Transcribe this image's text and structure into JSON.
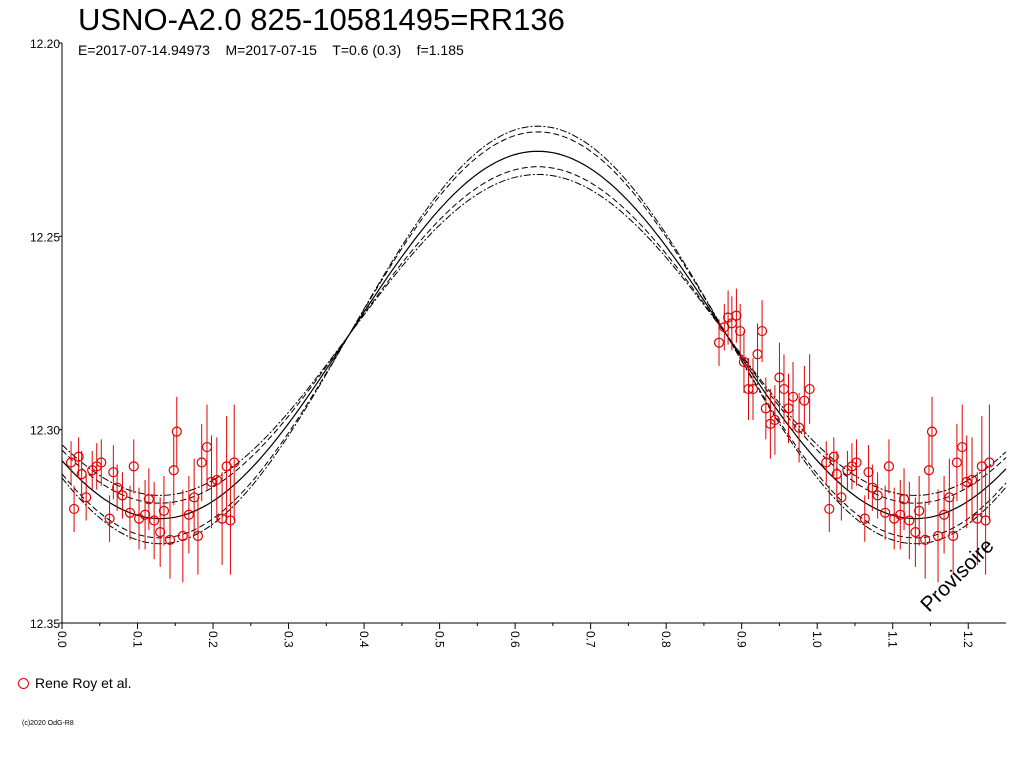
{
  "title": "USNO-A2.0 825-10581495=RR136",
  "subtitle": "E=2017-07-14.94973    M=2017-07-15    T=0.6 (0.3)    f=1.185",
  "legend_label": "Rene Roy et al.",
  "watermark": "Provisoire",
  "copyright": "(c)2020 OdG-R8",
  "colors": {
    "data": "#e00000",
    "curve": "#000000"
  },
  "chart_data": {
    "type": "scatter",
    "title": "USNO-A2.0 825-10581495=RR136",
    "xlabel": "",
    "ylabel": "",
    "xlim": [
      0.0,
      1.25
    ],
    "ylim": [
      12.35,
      12.2
    ],
    "y_inverted": true,
    "x_ticks": [
      "0.0",
      "0.1",
      "0.2",
      "0.3",
      "0.4",
      "0.5",
      "0.6",
      "0.7",
      "0.8",
      "0.9",
      "1.0",
      "1.1",
      "1.2"
    ],
    "y_ticks": [
      "12.20",
      "12.25",
      "12.30",
      "12.35"
    ],
    "curve_model": {
      "period_phase": 1.0,
      "mean": 12.2755,
      "amplitude": 0.0475,
      "max_phase": 0.63,
      "envelope_amplitudes": [
        0.0525,
        0.054,
        0.0435,
        0.0415
      ]
    },
    "series": [
      {
        "name": "Rene Roy et al.",
        "points": [
          [
            0.012,
            12.3085,
            0.0055
          ],
          [
            0.016,
            12.3205,
            0.006
          ],
          [
            0.022,
            12.307,
            0.005
          ],
          [
            0.026,
            12.3115,
            0.006
          ],
          [
            0.032,
            12.3175,
            0.006
          ],
          [
            0.04,
            12.3105,
            0.005
          ],
          [
            0.046,
            12.3095,
            0.006
          ],
          [
            0.052,
            12.3085,
            0.006
          ],
          [
            0.063,
            12.323,
            0.006
          ],
          [
            0.068,
            12.311,
            0.007
          ],
          [
            0.073,
            12.315,
            0.006
          ],
          [
            0.08,
            12.317,
            0.006
          ],
          [
            0.09,
            12.3215,
            0.007
          ],
          [
            0.095,
            12.3095,
            0.007
          ],
          [
            0.102,
            12.323,
            0.008
          ],
          [
            0.11,
            12.322,
            0.009
          ],
          [
            0.115,
            12.318,
            0.008
          ],
          [
            0.122,
            12.3235,
            0.01
          ],
          [
            0.13,
            12.3265,
            0.009
          ],
          [
            0.135,
            12.321,
            0.009
          ],
          [
            0.143,
            12.3285,
            0.01
          ],
          [
            0.148,
            12.3105,
            0.009
          ],
          [
            0.152,
            12.3005,
            0.009
          ],
          [
            0.16,
            12.3275,
            0.012
          ],
          [
            0.168,
            12.322,
            0.01
          ],
          [
            0.175,
            12.3175,
            0.01
          ],
          [
            0.18,
            12.3275,
            0.01
          ],
          [
            0.185,
            12.3085,
            0.01
          ],
          [
            0.192,
            12.3045,
            0.011
          ],
          [
            0.198,
            12.3135,
            0.012
          ],
          [
            0.205,
            12.313,
            0.011
          ],
          [
            0.212,
            12.323,
            0.012
          ],
          [
            0.218,
            12.3095,
            0.013
          ],
          [
            0.223,
            12.3235,
            0.014
          ],
          [
            0.228,
            12.3085,
            0.015
          ],
          [
            0.87,
            12.2775,
            0.006
          ],
          [
            0.877,
            12.2735,
            0.006
          ],
          [
            0.882,
            12.271,
            0.007
          ],
          [
            0.887,
            12.2725,
            0.007
          ],
          [
            0.893,
            12.2705,
            0.007
          ],
          [
            0.898,
            12.2745,
            0.007
          ],
          [
            0.903,
            12.2825,
            0.008
          ],
          [
            0.909,
            12.2895,
            0.008
          ],
          [
            0.915,
            12.2895,
            0.008
          ],
          [
            0.921,
            12.2805,
            0.008
          ],
          [
            0.927,
            12.2745,
            0.008
          ],
          [
            0.932,
            12.2945,
            0.008
          ],
          [
            0.938,
            12.2985,
            0.009
          ],
          [
            0.944,
            12.2975,
            0.009
          ],
          [
            0.95,
            12.2865,
            0.009
          ],
          [
            0.956,
            12.2895,
            0.009
          ],
          [
            0.962,
            12.2945,
            0.009
          ],
          [
            0.968,
            12.2915,
            0.009
          ],
          [
            0.976,
            12.2995,
            0.009
          ],
          [
            0.983,
            12.2925,
            0.009
          ],
          [
            0.99,
            12.2895,
            0.009
          ],
          [
            1.012,
            12.3085,
            0.0055
          ],
          [
            1.016,
            12.3205,
            0.006
          ],
          [
            1.022,
            12.307,
            0.005
          ],
          [
            1.026,
            12.3115,
            0.006
          ],
          [
            1.032,
            12.3175,
            0.006
          ],
          [
            1.04,
            12.3105,
            0.005
          ],
          [
            1.046,
            12.3095,
            0.006
          ],
          [
            1.052,
            12.3085,
            0.006
          ],
          [
            1.063,
            12.323,
            0.006
          ],
          [
            1.068,
            12.311,
            0.007
          ],
          [
            1.073,
            12.315,
            0.006
          ],
          [
            1.08,
            12.317,
            0.006
          ],
          [
            1.09,
            12.3215,
            0.007
          ],
          [
            1.095,
            12.3095,
            0.007
          ],
          [
            1.102,
            12.323,
            0.008
          ],
          [
            1.11,
            12.322,
            0.009
          ],
          [
            1.115,
            12.318,
            0.008
          ],
          [
            1.122,
            12.3235,
            0.01
          ],
          [
            1.13,
            12.3265,
            0.009
          ],
          [
            1.135,
            12.321,
            0.009
          ],
          [
            1.143,
            12.3285,
            0.01
          ],
          [
            1.148,
            12.3105,
            0.009
          ],
          [
            1.152,
            12.3005,
            0.009
          ],
          [
            1.16,
            12.3275,
            0.012
          ],
          [
            1.168,
            12.322,
            0.01
          ],
          [
            1.175,
            12.3175,
            0.01
          ],
          [
            1.18,
            12.3275,
            0.01
          ],
          [
            1.185,
            12.3085,
            0.01
          ],
          [
            1.192,
            12.3045,
            0.011
          ],
          [
            1.198,
            12.3135,
            0.012
          ],
          [
            1.205,
            12.313,
            0.011
          ],
          [
            1.212,
            12.323,
            0.012
          ],
          [
            1.218,
            12.3095,
            0.013
          ],
          [
            1.223,
            12.3235,
            0.014
          ],
          [
            1.228,
            12.3085,
            0.015
          ]
        ]
      }
    ]
  }
}
